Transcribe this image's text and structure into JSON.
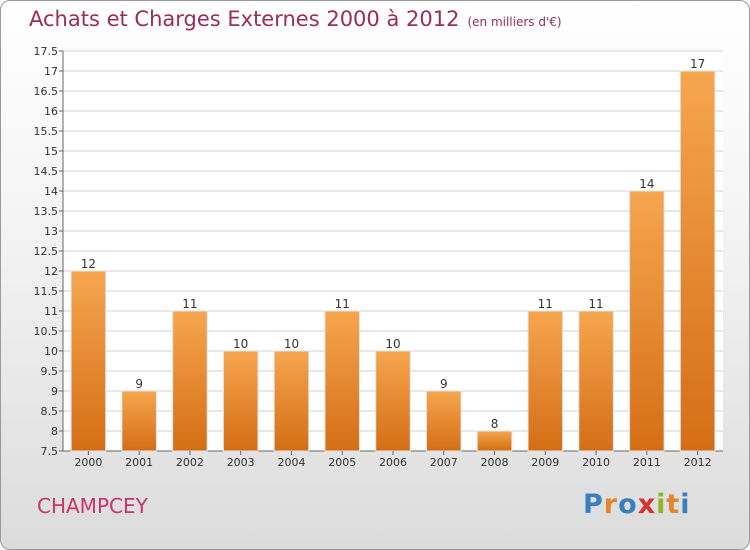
{
  "title": "Achats et Charges Externes 2000 à 2012",
  "unit_label": "(en milliers d'€)",
  "place_name": "CHAMPCEY",
  "brand": "Proxiti",
  "colors": {
    "bar_light": "#f6a64f",
    "bar_dark": "#d46e15",
    "title": "#9b2c5b",
    "place": "#c8356b"
  },
  "chart_data": {
    "type": "bar",
    "categories": [
      "2000",
      "2001",
      "2002",
      "2003",
      "2004",
      "2005",
      "2006",
      "2007",
      "2008",
      "2009",
      "2010",
      "2011",
      "2012"
    ],
    "values": [
      12,
      9,
      11,
      10,
      10,
      11,
      10,
      9,
      8,
      11,
      11,
      14,
      17
    ],
    "ylim": [
      7.5,
      17.5
    ],
    "yticks": [
      "7.5",
      "8",
      "8.5",
      "9",
      "9.5",
      "10",
      "10.5",
      "11",
      "11.5",
      "12",
      "12.5",
      "13",
      "13.5",
      "14",
      "14.5",
      "15",
      "15.5",
      "16",
      "16.5",
      "17",
      "17.5"
    ],
    "grid": true,
    "xlabel": "",
    "ylabel": ""
  }
}
